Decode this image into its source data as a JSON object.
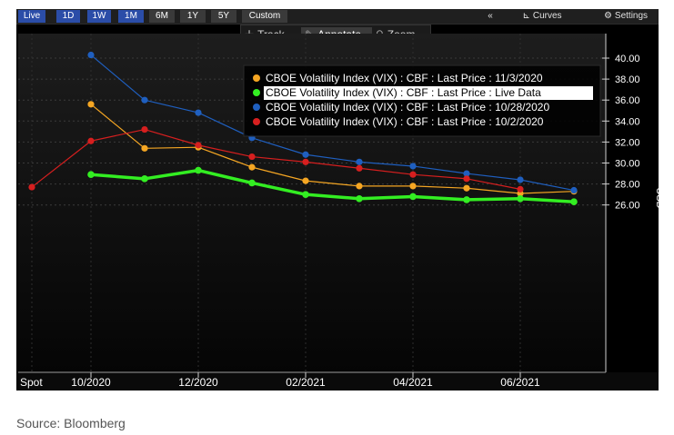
{
  "toolbar": {
    "periods": [
      "Live",
      "1D",
      "1W",
      "1M",
      "6M",
      "1Y",
      "5Y",
      "Custom"
    ],
    "collapse": "«",
    "curves": "Curves",
    "settings": "Settings"
  },
  "tools": {
    "track": "Track",
    "annotate": "Annotate",
    "zoom": "Zoom"
  },
  "source": "Source: Bloomberg",
  "chart_data": {
    "type": "line",
    "title": "",
    "xlabel": "",
    "ylabel": "USD",
    "ylim": [
      25,
      41.5
    ],
    "yticks": [
      26,
      28,
      30,
      32,
      34,
      36,
      38,
      40
    ],
    "ytick_labels": [
      "26.00",
      "28.00",
      "30.00",
      "32.00",
      "34.00",
      "36.00",
      "38.00",
      "40.00"
    ],
    "x_positions": [
      "Spot",
      "Oct 2020",
      "Nov 2020",
      "Dec 2020",
      "Jan 2021",
      "Feb 2021",
      "Mar 2021",
      "Apr 2021",
      "May 2021",
      "Jun 2021",
      "Jul 2021"
    ],
    "xtick_labels": [
      {
        "label": "Spot",
        "index": 0
      },
      {
        "label": "10/2020",
        "index": 1
      },
      {
        "label": "12/2020",
        "index": 3
      },
      {
        "label": "02/2021",
        "index": 5
      },
      {
        "label": "04/2021",
        "index": 7
      },
      {
        "label": "06/2021",
        "index": 9
      }
    ],
    "legend_position": "top-right",
    "grid": true,
    "series": [
      {
        "name": "CBOE Volatility Index (VIX) : CBF : Last Price : 11/3/2020",
        "color": "#f5a623",
        "values": [
          null,
          35.6,
          31.4,
          31.5,
          29.6,
          28.3,
          27.8,
          27.8,
          27.6,
          27.1,
          27.3
        ]
      },
      {
        "name": "CBOE Volatility Index (VIX) : CBF : Last Price : Live Data",
        "color": "#33ee22",
        "values": [
          null,
          28.9,
          28.5,
          29.3,
          28.1,
          27.0,
          26.6,
          26.8,
          26.5,
          26.6,
          26.3
        ]
      },
      {
        "name": "CBOE Volatility Index (VIX) : CBF : Last Price : 10/28/2020",
        "color": "#1f5fbf",
        "values": [
          null,
          40.3,
          36.0,
          34.8,
          32.4,
          30.8,
          30.1,
          29.7,
          29.0,
          28.4,
          27.4
        ]
      },
      {
        "name": "CBOE Volatility Index (VIX) : CBF : Last Price : 10/2/2020",
        "color": "#d61f1f",
        "values": [
          27.7,
          32.1,
          33.2,
          31.7,
          30.6,
          30.1,
          29.5,
          28.9,
          28.5,
          27.5,
          null
        ]
      }
    ]
  }
}
